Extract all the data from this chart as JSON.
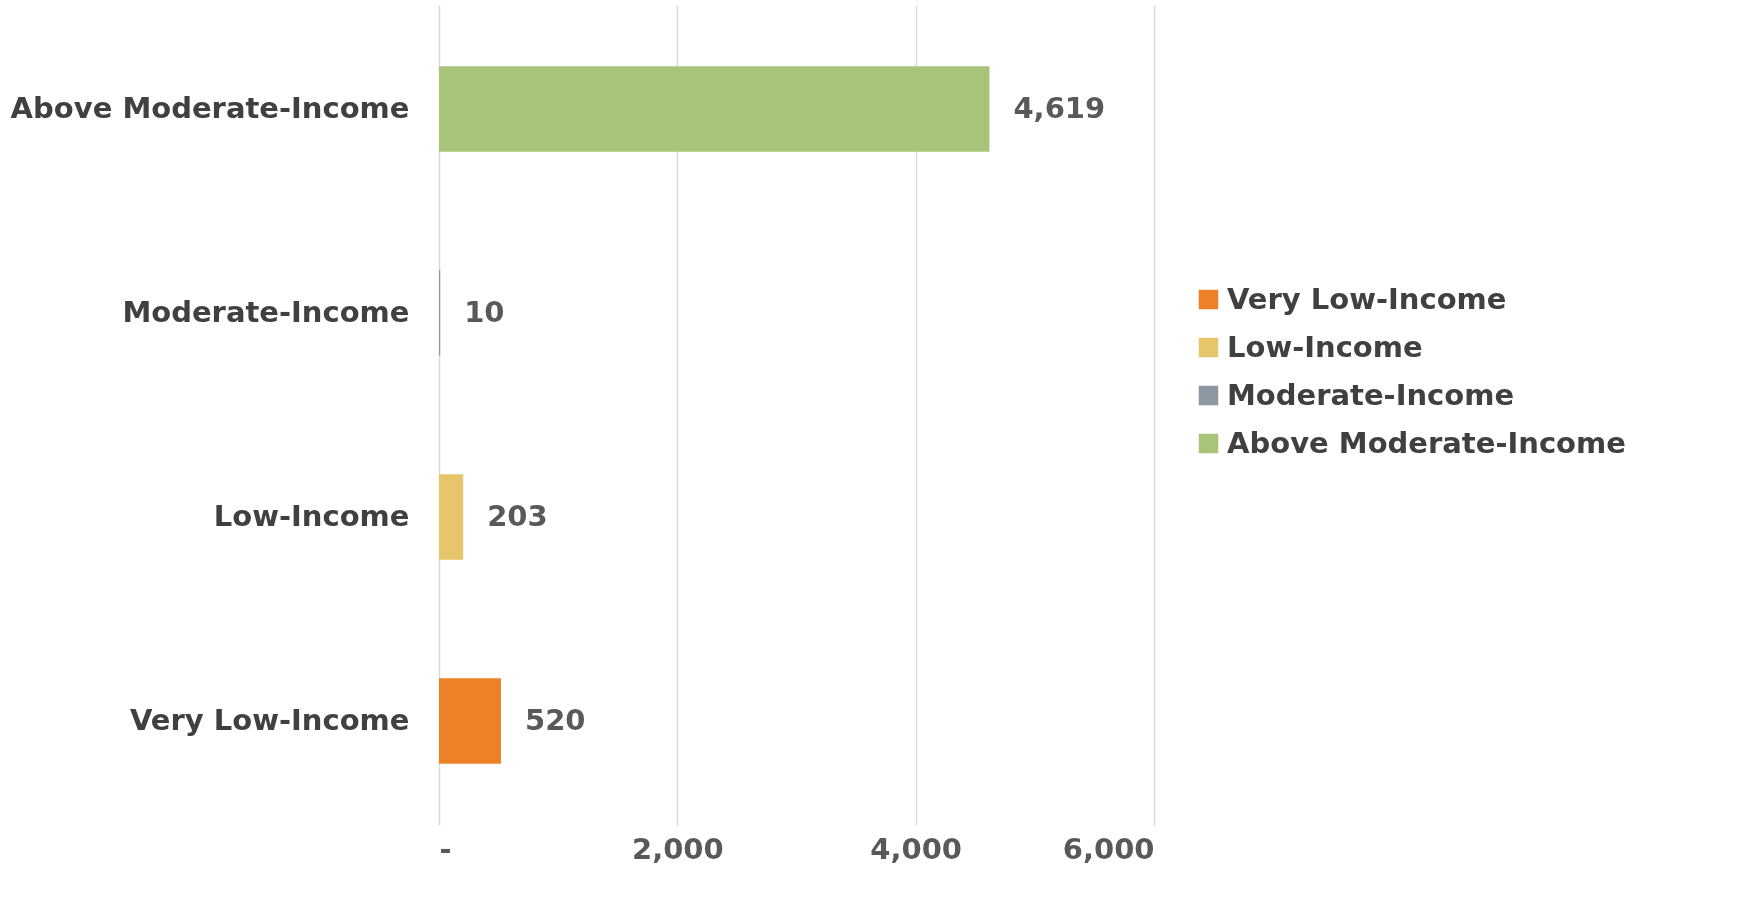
{
  "chart_data": {
    "type": "bar",
    "orientation": "horizontal",
    "categories": [
      "Above Moderate-Income",
      "Moderate-Income",
      "Low-Income",
      "Very Low-Income"
    ],
    "series": [
      {
        "name": "Very Low-Income",
        "color": "#ed8128",
        "values": [
          null,
          null,
          null,
          520
        ],
        "value_labels": [
          null,
          null,
          null,
          "520"
        ]
      },
      {
        "name": "Low-Income",
        "color": "#e6c56b",
        "values": [
          null,
          null,
          203,
          null
        ],
        "value_labels": [
          null,
          null,
          "203",
          null
        ]
      },
      {
        "name": "Moderate-Income",
        "color": "#8e98a3",
        "values": [
          null,
          10,
          null,
          null
        ],
        "value_labels": [
          null,
          "10",
          null,
          null
        ]
      },
      {
        "name": "Above Moderate-Income",
        "color": "#a8c47a",
        "values": [
          4619,
          null,
          null,
          null
        ],
        "value_labels": [
          "4,619",
          null,
          null,
          null
        ]
      }
    ],
    "xlim": [
      0,
      6000
    ],
    "xticks": [
      {
        "value": 0,
        "label": "-"
      },
      {
        "value": 2000,
        "label": "2,000"
      },
      {
        "value": 4000,
        "label": "4,000"
      },
      {
        "value": 6000,
        "label": "6,000"
      }
    ],
    "grid": "x",
    "legend": "right"
  }
}
